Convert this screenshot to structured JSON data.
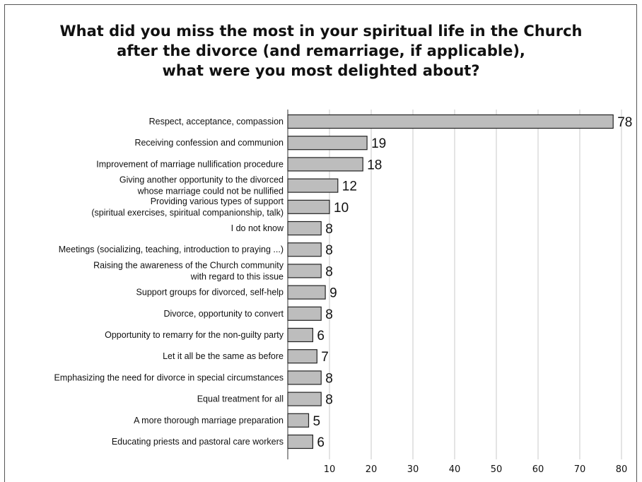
{
  "chart_data": {
    "type": "bar",
    "orientation": "horizontal",
    "title_lines": [
      "What did you miss the most in your spiritual life in the Church",
      "after the divorce (and remarriage, if applicable),",
      "what were you most delighted about?"
    ],
    "categories": [
      [
        "Respect, acceptance, compassion"
      ],
      [
        "Receiving confession and communion"
      ],
      [
        "Improvement of marriage nullification procedure"
      ],
      [
        "Giving another opportunity to the divorced",
        "whose marriage could not be nullified"
      ],
      [
        "Providing various types of support",
        "(spiritual exercises, spiritual companionship, talk)"
      ],
      [
        "I do not know"
      ],
      [
        "Meetings (socializing, teaching, introduction to praying ...)"
      ],
      [
        "Raising the awareness of the Church community",
        "with regard to this issue"
      ],
      [
        "Support groups for divorced, self-help"
      ],
      [
        "Divorce, opportunity to convert"
      ],
      [
        "Opportunity to remarry for the non-guilty party"
      ],
      [
        "Let it all be the same as before"
      ],
      [
        "Emphasizing the need for divorce in special circumstances"
      ],
      [
        "Equal treatment for all"
      ],
      [
        "A more thorough marriage preparation"
      ],
      [
        "Educating priests and pastoral care workers"
      ]
    ],
    "values": [
      78,
      19,
      18,
      12,
      10,
      8,
      8,
      8,
      9,
      8,
      6,
      7,
      8,
      8,
      5,
      6
    ],
    "xticks": [
      10,
      20,
      30,
      40,
      50,
      60,
      70,
      80
    ],
    "xlim": [
      0,
      80
    ],
    "grid": "vertical",
    "colors": {
      "bar": "#bdbdbd",
      "bar_border": "#222222",
      "grid": "#c8c8c8"
    }
  }
}
